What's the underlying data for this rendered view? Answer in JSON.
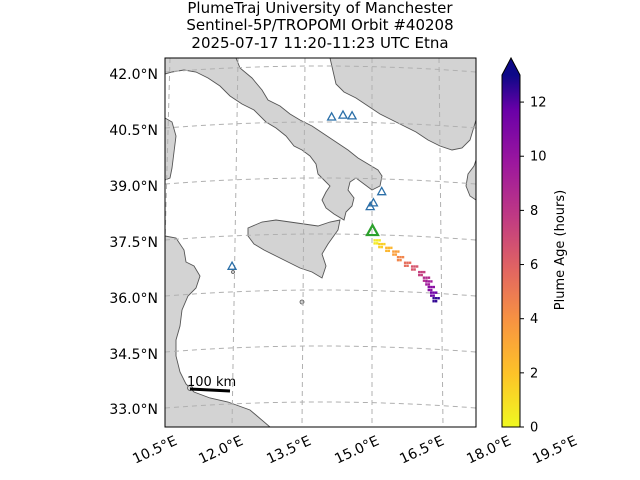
{
  "title": {
    "line1": "PlumeTraj    University of Manchester",
    "line2": "Sentinel-5P/TROPOMI Orbit #40208",
    "line3": "2025-07-17   11:20-11:23 UTC   Etna"
  },
  "lat_ticks": [
    "42.0°N",
    "40.5°N",
    "39.0°N",
    "37.5°N",
    "36.0°N",
    "34.5°N",
    "33.0°N"
  ],
  "lon_ticks": [
    "10.5°E",
    "12.0°E",
    "13.5°E",
    "15.0°E",
    "16.5°E",
    "18.0°E",
    "19.5°E"
  ],
  "scale_bar": {
    "label": "100 km"
  },
  "colorbar": {
    "label": "Plume Age (hours)",
    "ticks": [
      "0",
      "2",
      "4",
      "6",
      "8",
      "10",
      "12"
    ],
    "min": 0,
    "max": 13,
    "colormap": "plasma_r",
    "extend": "max"
  },
  "colors": {
    "land": "#d3d3d3",
    "coast": "#555555",
    "grid": "#b0b0b0",
    "volcano_other": "#2b6fa8",
    "volcano_target": "#2ca02c"
  },
  "volcanoes": [
    {
      "name": "Etna",
      "lon": 15.0,
      "lat": 37.75,
      "target": true
    },
    {
      "lon": 14.95,
      "lat": 38.4
    },
    {
      "lon": 15.02,
      "lat": 38.5
    },
    {
      "lon": 15.2,
      "lat": 38.8
    },
    {
      "lon": 14.1,
      "lat": 40.8
    },
    {
      "lon": 14.35,
      "lat": 40.85
    },
    {
      "lon": 14.55,
      "lat": 40.83
    },
    {
      "lon": 12.0,
      "lat": 36.8
    }
  ],
  "chart_data": {
    "type": "scatter",
    "series": [
      {
        "x": [
          15.1,
          15.2,
          15.35,
          15.5,
          15.6,
          15.75,
          15.9,
          16.05,
          16.15,
          16.2,
          16.25,
          16.3,
          16.35
        ],
        "y": [
          37.45,
          37.35,
          37.25,
          37.15,
          37.0,
          36.85,
          36.75,
          36.6,
          36.45,
          36.35,
          36.2,
          36.05,
          35.9
        ],
        "age_hours": [
          0.5,
          1.5,
          2.5,
          3.5,
          4.5,
          5.5,
          6.5,
          7.5,
          8.5,
          9.5,
          10.5,
          11.5,
          12.5
        ]
      }
    ]
  }
}
